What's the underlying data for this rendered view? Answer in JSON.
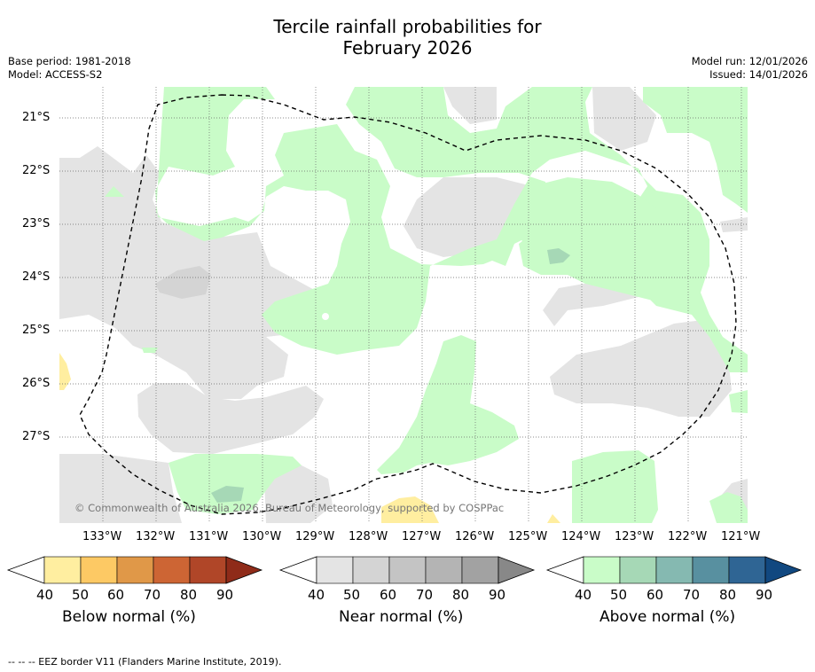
{
  "title_line1": "Tercile rainfall probabilities for",
  "title_line2": "February 2026",
  "base_period": "Base period: 1981-2018",
  "model": "Model: ACCESS-S2",
  "model_run": "Model run: 12/01/2026",
  "issued": "Issued: 14/01/2026",
  "copyright": "© Commonwealth of Australia 2026, Bureau of Meteorology, supported by COSPPac",
  "lat_labels": [
    "21°S",
    "22°S",
    "23°S",
    "24°S",
    "25°S",
    "26°S",
    "27°S"
  ],
  "lon_labels": [
    "133°W",
    "132°W",
    "131°W",
    "130°W",
    "129°W",
    "128°W",
    "127°W",
    "126°W",
    "125°W",
    "124°W",
    "123°W",
    "122°W",
    "121°W"
  ],
  "colorbars": [
    {
      "label": "Below normal (%)",
      "ticks": [
        "40",
        "50",
        "60",
        "70",
        "80",
        "90"
      ],
      "colors": [
        "#ffeea0",
        "#fdc964",
        "#e09848",
        "#cd6534",
        "#b04628",
        "#8f2b19"
      ]
    },
    {
      "label": "Near normal (%)",
      "ticks": [
        "40",
        "50",
        "60",
        "70",
        "80",
        "90"
      ],
      "colors": [
        "#e4e4e4",
        "#d4d4d4",
        "#c4c4c4",
        "#b4b4b4",
        "#a2a2a2",
        "#888888"
      ]
    },
    {
      "label": "Above normal (%)",
      "ticks": [
        "40",
        "50",
        "60",
        "70",
        "80",
        "90"
      ],
      "colors": [
        "#c9fcc8",
        "#a6d8b6",
        "#85b9b1",
        "#5890a0",
        "#2f6594",
        "#114880"
      ]
    }
  ],
  "footer": "--  --  -- EEZ border V11 (Flanders Marine Institute, 2019)."
}
